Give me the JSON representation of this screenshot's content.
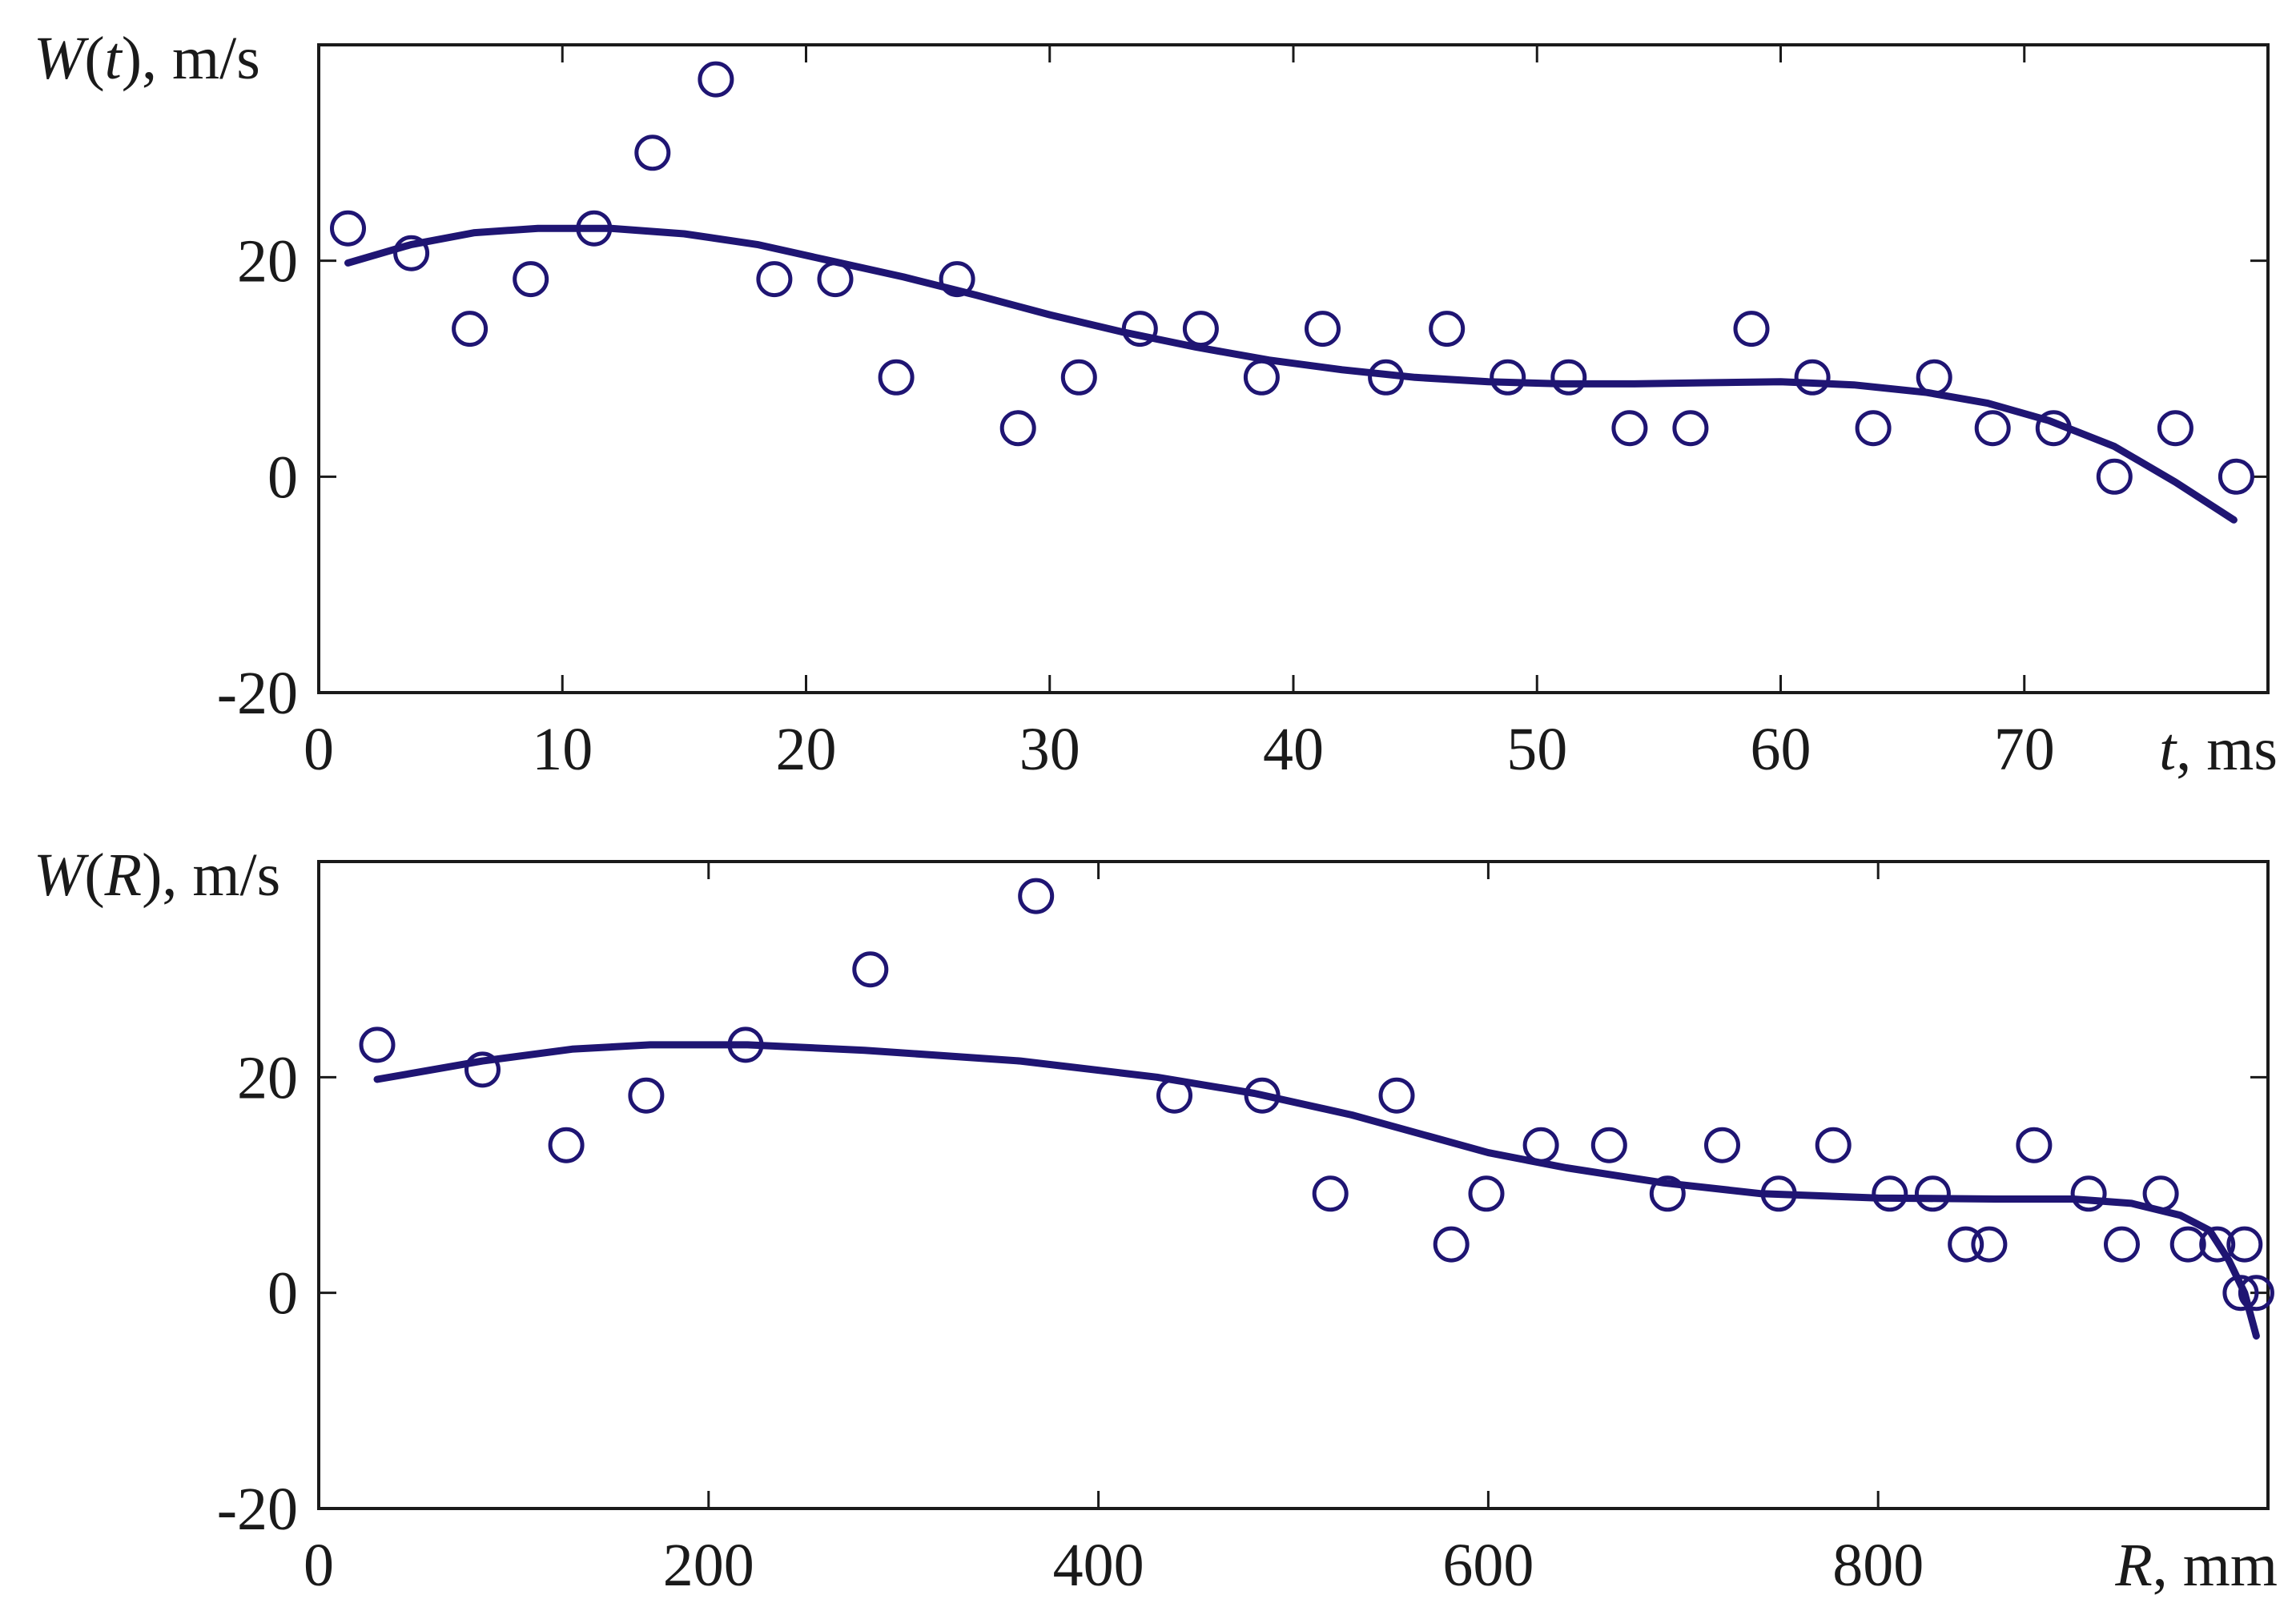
{
  "chart_data": [
    {
      "type": "scatter",
      "title": "",
      "ylabel_parts": [
        "W",
        "(",
        "t",
        "), m/s"
      ],
      "xlabel_parts": [
        "t",
        ", ms"
      ],
      "xlim": [
        0,
        80
      ],
      "ylim": [
        -20,
        40
      ],
      "xticks": [
        0,
        10,
        20,
        30,
        40,
        50,
        60,
        70
      ],
      "xtick_labels": [
        "0",
        "10",
        "20",
        "30",
        "40",
        "50",
        "60",
        "70"
      ],
      "yticks": [
        -20,
        0,
        20
      ],
      "ytick_labels": [
        "-20",
        "0",
        "20"
      ],
      "grid": false,
      "legend": "none",
      "colors": {
        "points": "#1f1573",
        "fit": "#1f1573"
      },
      "series": [
        {
          "kind": "points",
          "x": [
            1.2,
            3.8,
            6.2,
            8.7,
            11.3,
            13.7,
            16.3,
            18.7,
            21.2,
            23.7,
            26.2,
            28.7,
            31.2,
            33.7,
            36.2,
            38.7,
            41.2,
            43.8,
            46.3,
            48.8,
            51.3,
            53.8,
            56.3,
            58.8,
            61.3,
            63.8,
            66.3,
            68.7,
            71.2,
            73.7,
            76.2,
            78.7
          ],
          "y": [
            23,
            20.7,
            13.7,
            18.3,
            23,
            30,
            36.8,
            18.3,
            18.3,
            9.2,
            18.3,
            4.5,
            9.2,
            13.7,
            13.7,
            9.2,
            13.7,
            9.2,
            13.7,
            9.2,
            9.2,
            4.5,
            4.5,
            13.7,
            9.2,
            4.5,
            9.2,
            4.5,
            4.5,
            0,
            4.5,
            0
          ]
        },
        {
          "kind": "fit",
          "x": [
            1.2,
            3.8,
            6.4,
            9,
            12,
            15,
            18,
            21,
            24,
            27,
            30,
            33,
            36,
            39,
            42,
            45,
            48,
            51,
            54,
            57,
            60,
            63,
            66,
            68.5,
            71,
            73.7,
            76.2,
            78.6
          ],
          "y": [
            19.8,
            21.5,
            22.6,
            23,
            23,
            22.5,
            21.5,
            20,
            18.5,
            16.8,
            15,
            13.4,
            12,
            10.8,
            9.9,
            9.2,
            8.8,
            8.6,
            8.6,
            8.7,
            8.8,
            8.5,
            7.8,
            6.8,
            5.2,
            2.8,
            -0.5,
            -4
          ]
        }
      ]
    },
    {
      "type": "scatter",
      "title": "",
      "ylabel_parts": [
        "W",
        "(",
        "R",
        "), m/s"
      ],
      "xlabel_parts": [
        "R",
        ", mm"
      ],
      "xlim": [
        0,
        1000
      ],
      "ylim": [
        -20,
        40
      ],
      "xticks": [
        0,
        200,
        400,
        600,
        800
      ],
      "xtick_labels": [
        "0",
        "200",
        "400",
        "600",
        "800"
      ],
      "yticks": [
        -20,
        0,
        20
      ],
      "ytick_labels": [
        "-20",
        "0",
        "20"
      ],
      "grid": false,
      "legend": "none",
      "colors": {
        "points": "#1f1573",
        "fit": "#1f1573"
      },
      "series": [
        {
          "kind": "points",
          "x": [
            30,
            84,
            127,
            168,
            219,
            283,
            368,
            439,
            484,
            519,
            553,
            581,
            599,
            627,
            662,
            692,
            720,
            749,
            777,
            806,
            828,
            845,
            857,
            880,
            908,
            925,
            945,
            959,
            974,
            986,
            988,
            994
          ],
          "y": [
            23,
            20.7,
            13.7,
            18.3,
            23,
            30,
            36.8,
            18.3,
            18.3,
            9.2,
            18.3,
            4.5,
            9.2,
            13.7,
            13.7,
            9.2,
            13.7,
            9.2,
            13.7,
            9.2,
            9.2,
            4.5,
            4.5,
            13.7,
            9.2,
            4.5,
            9.2,
            4.5,
            4.5,
            0,
            4.5,
            0
          ]
        },
        {
          "kind": "fit",
          "x": [
            30,
            84,
            130,
            170,
            220,
            280,
            360,
            430,
            480,
            530,
            570,
            600,
            640,
            690,
            740,
            800,
            860,
            900,
            930,
            955,
            970,
            980,
            988,
            994
          ],
          "y": [
            19.8,
            21.5,
            22.6,
            23,
            23,
            22.5,
            21.5,
            20,
            18.5,
            16.5,
            14.5,
            13,
            11.6,
            10.2,
            9.2,
            8.8,
            8.7,
            8.7,
            8.3,
            7.2,
            5.8,
            3,
            0,
            -4
          ]
        }
      ]
    }
  ]
}
